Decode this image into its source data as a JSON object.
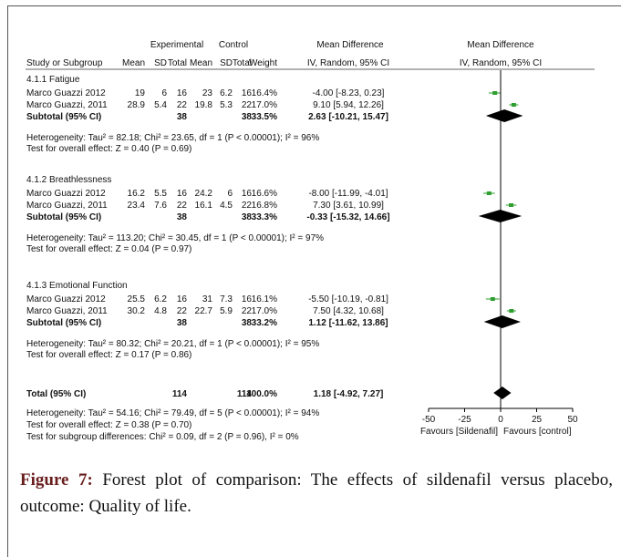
{
  "figure": {
    "label": "Figure 7:",
    "caption": "Forest plot of comparison: The effects of sildenafil versus placebo, outcome: Quality of life."
  },
  "chart_data": {
    "type": "forest",
    "header": {
      "group_experimental": "Experimental",
      "group_control": "Control",
      "group_md_left": "Mean Difference",
      "group_md_right": "Mean Difference",
      "study": "Study or Subgroup",
      "mean1": "Mean",
      "sd1": "SD",
      "total1": "Total",
      "mean2": "Mean",
      "sd2": "SD",
      "total2": "Total",
      "weight": "Weight",
      "ci_left": "IV, Random, 95% CI",
      "ci_right": "IV, Random, 95% CI"
    },
    "subgroups": [
      {
        "title": "4.1.1 Fatigue",
        "studies": [
          {
            "name": "Marco Guazzi 2012",
            "mean1": "19",
            "sd1": "6",
            "total1": "16",
            "mean2": "23",
            "sd2": "6.2",
            "total2": "16",
            "weight": "16.4%",
            "ci_text": "-4.00 [-8.23, 0.23]",
            "md": -4.0,
            "lo": -8.23,
            "hi": 0.23
          },
          {
            "name": "Marco Guazzi, 2011",
            "mean1": "28.9",
            "sd1": "5.4",
            "total1": "22",
            "mean2": "19.8",
            "sd2": "5.3",
            "total2": "22",
            "weight": "17.0%",
            "ci_text": "9.10 [5.94, 12.26]",
            "md": 9.1,
            "lo": 5.94,
            "hi": 12.26
          }
        ],
        "subtotal": {
          "label": "Subtotal (95% CI)",
          "total1": "38",
          "total2": "38",
          "weight": "33.5%",
          "ci_text": "2.63 [-10.21, 15.47]",
          "md": 2.63,
          "lo": -10.21,
          "hi": 15.47
        },
        "heterogeneity": "Heterogeneity: Tau² = 82.18; Chi² = 23.65, df = 1 (P < 0.00001); I² = 96%",
        "overall_effect": "Test for overall effect: Z = 0.40 (P = 0.69)"
      },
      {
        "title": "4.1.2 Breathlessness",
        "studies": [
          {
            "name": "Marco Guazzi 2012",
            "mean1": "16.2",
            "sd1": "5.5",
            "total1": "16",
            "mean2": "24.2",
            "sd2": "6",
            "total2": "16",
            "weight": "16.6%",
            "ci_text": "-8.00 [-11.99, -4.01]",
            "md": -8.0,
            "lo": -11.99,
            "hi": -4.01
          },
          {
            "name": "Marco Guazzi, 2011",
            "mean1": "23.4",
            "sd1": "7.6",
            "total1": "22",
            "mean2": "16.1",
            "sd2": "4.5",
            "total2": "22",
            "weight": "16.8%",
            "ci_text": "7.30 [3.61, 10.99]",
            "md": 7.3,
            "lo": 3.61,
            "hi": 10.99
          }
        ],
        "subtotal": {
          "label": "Subtotal (95% CI)",
          "total1": "38",
          "total2": "38",
          "weight": "33.3%",
          "ci_text": "-0.33 [-15.32, 14.66]",
          "md": -0.33,
          "lo": -15.32,
          "hi": 14.66
        },
        "heterogeneity": "Heterogeneity: Tau² = 113.20; Chi² = 30.45, df = 1 (P < 0.00001); I² = 97%",
        "overall_effect": "Test for overall effect: Z = 0.04 (P = 0.97)"
      },
      {
        "title": "4.1.3 Emotional Function",
        "studies": [
          {
            "name": "Marco Guazzi 2012",
            "mean1": "25.5",
            "sd1": "6.2",
            "total1": "16",
            "mean2": "31",
            "sd2": "7.3",
            "total2": "16",
            "weight": "16.1%",
            "ci_text": "-5.50 [-10.19, -0.81]",
            "md": -5.5,
            "lo": -10.19,
            "hi": -0.81
          },
          {
            "name": "Marco Guazzi, 2011",
            "mean1": "30.2",
            "sd1": "4.8",
            "total1": "22",
            "mean2": "22.7",
            "sd2": "5.9",
            "total2": "22",
            "weight": "17.0%",
            "ci_text": "7.50 [4.32, 10.68]",
            "md": 7.5,
            "lo": 4.32,
            "hi": 10.68
          }
        ],
        "subtotal": {
          "label": "Subtotal (95% CI)",
          "total1": "38",
          "total2": "38",
          "weight": "33.2%",
          "ci_text": "1.12 [-11.62, 13.86]",
          "md": 1.12,
          "lo": -11.62,
          "hi": 13.86
        },
        "heterogeneity": "Heterogeneity: Tau² = 80.32; Chi² = 20.21, df = 1 (P < 0.00001); I² = 95%",
        "overall_effect": "Test for overall effect: Z = 0.17 (P = 0.86)"
      }
    ],
    "total": {
      "label": "Total (95% CI)",
      "total1": "114",
      "total2": "114",
      "weight": "100.0%",
      "ci_text": "1.18 [-4.92, 7.27]",
      "md": 1.18,
      "lo": -4.92,
      "hi": 7.27
    },
    "footer": [
      "Heterogeneity: Tau² = 54.16; Chi² = 79.49, df = 5 (P < 0.00001); I² = 94%",
      "Test for overall effect: Z = 0.38 (P = 0.70)",
      "Test for subgroup differences: Chi² = 0.09, df = 2 (P = 0.96), I² = 0%"
    ],
    "axis": {
      "min": -50,
      "max": 50,
      "ticks": [
        "-50",
        "-25",
        "0",
        "25",
        "50"
      ]
    },
    "favours_left": "Favours [Sildenafil]",
    "favours_right": "Favours [control]",
    "colors": {
      "point": "#2e9e2e",
      "diamond": "#000000",
      "text": "#111111"
    }
  }
}
